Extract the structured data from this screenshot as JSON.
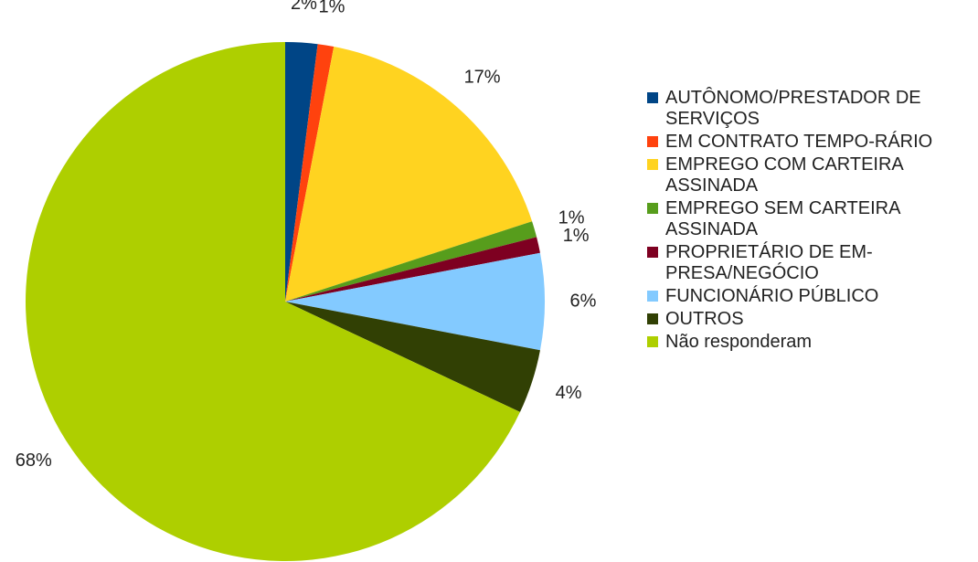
{
  "chart_data": {
    "type": "pie",
    "categories": [
      "AUTÔNOMO/PRESTADOR DE SERVIÇOS",
      "EM CONTRATO TEMPO-RÁRIO",
      "EMPREGO COM CARTEIRA ASSINADA",
      "EMPREGO SEM CARTEIRA ASSINADA",
      "PROPRIETÁRIO DE EM-PRESA/NEGÓCIO",
      "FUNCIONÁRIO PÚBLICO",
      "OUTROS",
      "Não responderam"
    ],
    "values": [
      2,
      1,
      17,
      1,
      1,
      6,
      4,
      68
    ],
    "value_labels": [
      "2%",
      "1%",
      "17%",
      "1%",
      "1%",
      "6%",
      "4%",
      "68%"
    ],
    "colors": [
      "#004586",
      "#ff420e",
      "#ffd320",
      "#579d1c",
      "#7e0021",
      "#83caff",
      "#314004",
      "#aecf00"
    ],
    "legend": "right"
  }
}
